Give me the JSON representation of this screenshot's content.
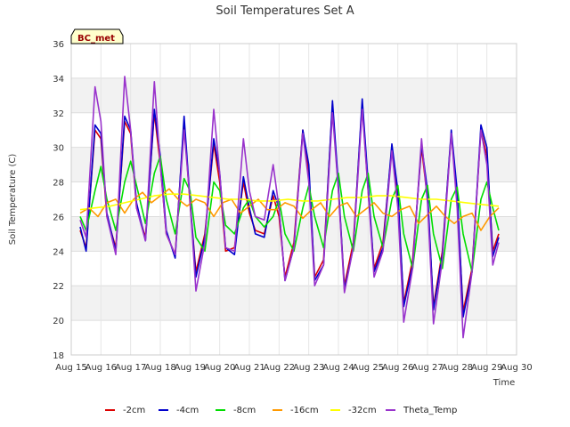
{
  "chart_data": {
    "type": "line",
    "title": "Soil Temperatures Set A",
    "xlabel": "Time",
    "ylabel": "Soil Temperature (C)",
    "badge": "BC_met",
    "xlim": [
      15,
      30
    ],
    "ylim": [
      18,
      36
    ],
    "x_ticks": [
      {
        "value": 15,
        "label": "Aug 15"
      },
      {
        "value": 16,
        "label": "Aug 16"
      },
      {
        "value": 17,
        "label": "Aug 17"
      },
      {
        "value": 18,
        "label": "Aug 18"
      },
      {
        "value": 19,
        "label": "Aug 19"
      },
      {
        "value": 20,
        "label": "Aug 20"
      },
      {
        "value": 21,
        "label": "Aug 21"
      },
      {
        "value": 22,
        "label": "Aug 22"
      },
      {
        "value": 23,
        "label": "Aug 23"
      },
      {
        "value": 24,
        "label": "Aug 24"
      },
      {
        "value": 25,
        "label": "Aug 25"
      },
      {
        "value": 26,
        "label": "Aug 26"
      },
      {
        "value": 27,
        "label": "Aug 27"
      },
      {
        "value": 28,
        "label": "Aug 28"
      },
      {
        "value": 29,
        "label": "Aug 29"
      },
      {
        "value": 30,
        "label": "Aug 30"
      }
    ],
    "y_ticks": [
      18,
      20,
      22,
      24,
      26,
      28,
      30,
      32,
      34,
      36
    ],
    "grid": true,
    "legend_position": "bottom",
    "series": [
      {
        "name": "-2cm",
        "color": "#dd0000",
        "x": [
          15.3,
          15.5,
          15.8,
          16.0,
          16.2,
          16.5,
          16.8,
          17.0,
          17.2,
          17.5,
          17.8,
          18.0,
          18.2,
          18.5,
          18.8,
          19.0,
          19.2,
          19.5,
          19.8,
          20.0,
          20.2,
          20.5,
          20.8,
          21.0,
          21.2,
          21.5,
          21.8,
          22.0,
          22.2,
          22.5,
          22.8,
          23.0,
          23.2,
          23.5,
          23.8,
          24.0,
          24.2,
          24.5,
          24.8,
          25.0,
          25.2,
          25.5,
          25.8,
          26.0,
          26.2,
          26.5,
          26.8,
          27.0,
          27.2,
          27.5,
          27.8,
          28.0,
          28.2,
          28.5,
          28.8,
          29.0,
          29.2,
          29.4
        ],
        "y": [
          25.2,
          24.2,
          31.0,
          30.5,
          26.0,
          24.2,
          31.5,
          30.8,
          26.5,
          24.8,
          32.0,
          29.0,
          25.0,
          23.8,
          31.5,
          26.8,
          22.8,
          25.0,
          30.2,
          28.0,
          24.0,
          24.2,
          28.0,
          26.2,
          25.2,
          25.0,
          27.2,
          26.0,
          22.5,
          24.5,
          31.0,
          28.5,
          22.5,
          23.5,
          32.5,
          27.5,
          22.0,
          24.5,
          32.5,
          27.5,
          23.0,
          24.5,
          30.0,
          27.0,
          21.0,
          23.5,
          30.0,
          27.0,
          20.8,
          24.0,
          30.8,
          27.0,
          20.5,
          23.0,
          31.0,
          29.5,
          24.0,
          25.0
        ]
      },
      {
        "name": "-4cm",
        "color": "#0000cc",
        "x": [
          15.3,
          15.5,
          15.8,
          16.0,
          16.2,
          16.5,
          16.8,
          17.0,
          17.2,
          17.5,
          17.8,
          18.0,
          18.2,
          18.5,
          18.8,
          19.0,
          19.2,
          19.5,
          19.8,
          20.0,
          20.2,
          20.5,
          20.8,
          21.0,
          21.2,
          21.5,
          21.8,
          22.0,
          22.2,
          22.5,
          22.8,
          23.0,
          23.2,
          23.5,
          23.8,
          24.0,
          24.2,
          24.5,
          24.8,
          25.0,
          25.2,
          25.5,
          25.8,
          26.0,
          26.2,
          26.5,
          26.8,
          27.0,
          27.2,
          27.5,
          27.8,
          28.0,
          28.2,
          28.5,
          28.8,
          29.0,
          29.2,
          29.4
        ],
        "y": [
          25.4,
          24.0,
          31.3,
          30.8,
          26.2,
          24.0,
          31.8,
          31.0,
          26.8,
          24.6,
          32.2,
          29.5,
          25.2,
          23.6,
          31.8,
          27.0,
          22.5,
          24.8,
          30.5,
          28.5,
          24.2,
          23.8,
          28.3,
          26.5,
          25.0,
          24.8,
          27.5,
          26.5,
          22.3,
          24.2,
          31.0,
          29.0,
          22.3,
          23.2,
          32.7,
          27.8,
          21.8,
          24.2,
          32.8,
          28.0,
          22.8,
          24.2,
          30.2,
          27.5,
          20.8,
          23.2,
          30.2,
          27.5,
          20.6,
          23.8,
          31.0,
          27.5,
          20.2,
          22.8,
          31.3,
          30.0,
          23.7,
          24.8
        ]
      },
      {
        "name": "-8cm",
        "color": "#00dd00",
        "x": [
          15.3,
          15.5,
          15.8,
          16.0,
          16.2,
          16.5,
          16.8,
          17.0,
          17.2,
          17.5,
          17.8,
          18.0,
          18.2,
          18.5,
          18.8,
          19.0,
          19.2,
          19.5,
          19.8,
          20.0,
          20.2,
          20.5,
          20.8,
          21.0,
          21.2,
          21.5,
          21.8,
          22.0,
          22.2,
          22.5,
          22.8,
          23.0,
          23.2,
          23.5,
          23.8,
          24.0,
          24.2,
          24.5,
          24.8,
          25.0,
          25.2,
          25.5,
          25.8,
          26.0,
          26.2,
          26.5,
          26.8,
          27.0,
          27.2,
          27.5,
          27.8,
          28.0,
          28.2,
          28.5,
          28.8,
          29.0,
          29.2,
          29.4
        ],
        "y": [
          26.0,
          25.2,
          27.5,
          28.9,
          27.0,
          25.2,
          28.0,
          29.2,
          27.8,
          25.6,
          28.5,
          29.5,
          27.0,
          25.0,
          28.2,
          27.5,
          24.8,
          24.0,
          28.0,
          27.5,
          25.5,
          25.0,
          26.5,
          27.0,
          26.0,
          25.4,
          26.0,
          27.0,
          25.0,
          24.0,
          26.5,
          27.8,
          26.0,
          24.2,
          27.5,
          28.5,
          26.0,
          24.0,
          27.5,
          28.5,
          26.0,
          24.2,
          27.0,
          27.8,
          25.0,
          23.0,
          27.0,
          27.8,
          25.0,
          23.0,
          27.0,
          27.7,
          25.0,
          22.8,
          27.0,
          28.0,
          26.5,
          25.2
        ]
      },
      {
        "name": "-16cm",
        "color": "#ff9900",
        "x": [
          15.3,
          15.6,
          15.9,
          16.2,
          16.5,
          16.8,
          17.1,
          17.4,
          17.7,
          18.0,
          18.3,
          18.6,
          18.9,
          19.2,
          19.5,
          19.8,
          20.1,
          20.4,
          20.7,
          21.0,
          21.3,
          21.6,
          21.9,
          22.2,
          22.5,
          22.8,
          23.1,
          23.4,
          23.7,
          24.0,
          24.3,
          24.6,
          24.9,
          25.2,
          25.5,
          25.8,
          26.1,
          26.4,
          26.7,
          27.0,
          27.3,
          27.6,
          27.9,
          28.2,
          28.5,
          28.8,
          29.1,
          29.4
        ],
        "y": [
          26.2,
          26.5,
          26.0,
          26.8,
          27.0,
          26.2,
          27.0,
          27.4,
          26.8,
          27.2,
          27.6,
          27.0,
          26.6,
          27.0,
          26.8,
          26.0,
          26.8,
          27.0,
          26.2,
          26.6,
          27.0,
          26.4,
          26.4,
          26.8,
          26.6,
          25.9,
          26.4,
          26.8,
          26.0,
          26.6,
          26.8,
          26.0,
          26.4,
          26.8,
          26.2,
          26.0,
          26.4,
          26.6,
          25.6,
          26.1,
          26.6,
          26.0,
          25.6,
          26.0,
          26.2,
          25.2,
          26.0,
          26.5
        ]
      },
      {
        "name": "-32cm",
        "color": "#ffff00",
        "x": [
          15.3,
          15.8,
          16.3,
          16.8,
          17.3,
          17.8,
          18.3,
          18.8,
          19.3,
          19.8,
          20.3,
          20.8,
          21.3,
          21.8,
          22.3,
          22.8,
          23.3,
          23.8,
          24.3,
          24.8,
          25.3,
          25.8,
          26.3,
          26.8,
          27.3,
          27.8,
          28.3,
          28.8,
          29.4
        ],
        "y": [
          26.4,
          26.5,
          26.6,
          26.8,
          27.0,
          27.2,
          27.3,
          27.3,
          27.2,
          27.1,
          27.0,
          27.0,
          26.9,
          26.9,
          27.0,
          26.9,
          26.9,
          27.0,
          27.1,
          27.1,
          27.2,
          27.2,
          27.1,
          27.0,
          27.0,
          26.9,
          26.8,
          26.7,
          26.6
        ]
      },
      {
        "name": "Theta_Temp",
        "color": "#9933cc",
        "x": [
          15.3,
          15.5,
          15.8,
          16.0,
          16.2,
          16.5,
          16.8,
          17.0,
          17.2,
          17.5,
          17.8,
          18.0,
          18.2,
          18.5,
          18.8,
          19.0,
          19.2,
          19.5,
          19.8,
          20.0,
          20.2,
          20.5,
          20.8,
          21.0,
          21.2,
          21.5,
          21.8,
          22.0,
          22.2,
          22.5,
          22.8,
          23.0,
          23.2,
          23.5,
          23.8,
          24.0,
          24.2,
          24.5,
          24.8,
          25.0,
          25.2,
          25.5,
          25.8,
          26.0,
          26.2,
          26.5,
          26.8,
          27.0,
          27.2,
          27.5,
          27.8,
          28.0,
          28.2,
          28.5,
          28.8,
          29.0,
          29.2,
          29.4
        ],
        "y": [
          25.8,
          24.8,
          33.5,
          31.5,
          26.0,
          23.8,
          34.1,
          31.0,
          26.5,
          24.6,
          33.8,
          29.0,
          25.0,
          23.8,
          31.0,
          27.0,
          21.7,
          24.5,
          32.2,
          28.5,
          24.2,
          24.0,
          30.5,
          27.5,
          26.0,
          25.8,
          29.0,
          26.5,
          22.3,
          24.2,
          30.8,
          28.0,
          22.0,
          23.2,
          32.0,
          27.5,
          21.6,
          24.2,
          32.2,
          27.5,
          22.5,
          24.0,
          29.8,
          26.5,
          19.9,
          23.0,
          30.5,
          26.8,
          19.8,
          23.5,
          30.8,
          26.5,
          19.0,
          22.8,
          31.0,
          29.0,
          23.2,
          24.5
        ]
      }
    ]
  }
}
